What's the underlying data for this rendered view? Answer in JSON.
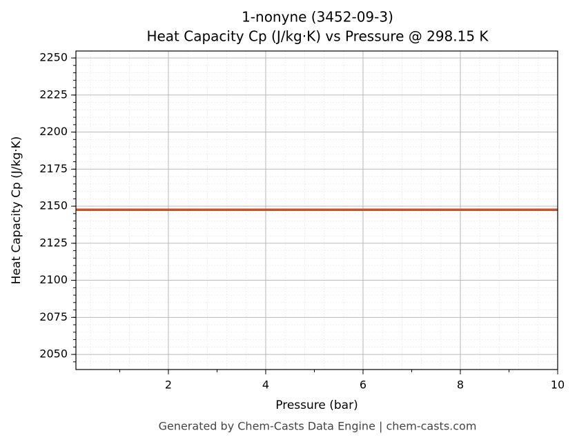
{
  "chart_data": {
    "type": "line",
    "title": "1-nonyne (3452-09-3)",
    "subtitle": "Heat Capacity Cp (J/kg·K) vs Pressure @ 298.15 K",
    "x_label": "Pressure (bar)",
    "y_label": "Heat Capacity Cp (J/kg·K)",
    "footer": "Generated by Chem-Casts Data Engine | chem-casts.com",
    "x": [
      0.1,
      10
    ],
    "series": [
      {
        "name": "Cp",
        "color": "#c8522a",
        "values": [
          2147.6,
          2147.6
        ]
      }
    ],
    "xlim": [
      0.1,
      10
    ],
    "xticks": [
      2,
      4,
      6,
      8,
      10
    ],
    "ylim": [
      2039.8,
      2254.7
    ],
    "yticks": [
      2050,
      2075,
      2100,
      2125,
      2150,
      2175,
      2200,
      2225,
      2250
    ],
    "grid": true,
    "minor_grid": true
  }
}
